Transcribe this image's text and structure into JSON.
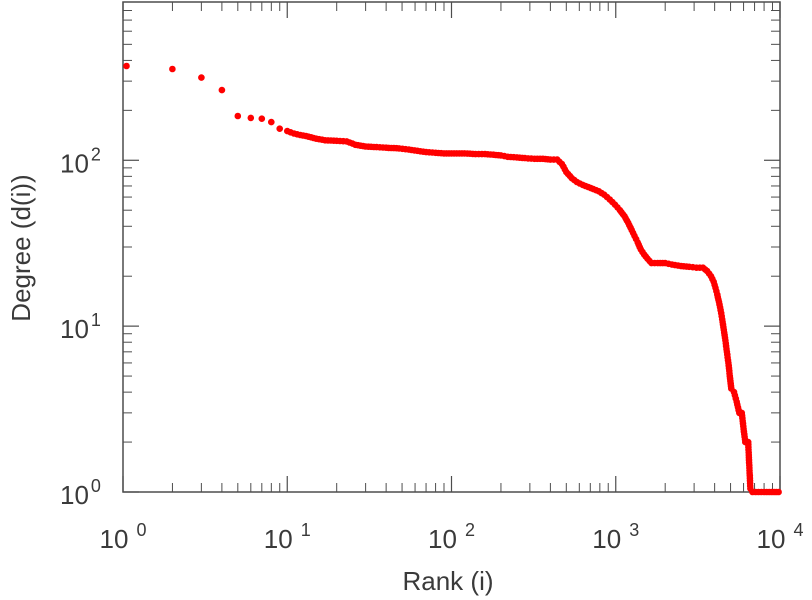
{
  "chart_data": {
    "type": "scatter",
    "title": "",
    "xlabel": "Rank (i)",
    "ylabel": "Degree (d(i))",
    "x_scale": "log",
    "y_scale": "log",
    "xlim": [
      1,
      10000
    ],
    "ylim": [
      1,
      900
    ],
    "grid": false,
    "marker_color": "#ff0000",
    "axis_color": "#4d4d4d",
    "x_ticks": [
      {
        "value": 1,
        "base": "10",
        "exp": "0"
      },
      {
        "value": 10,
        "base": "10",
        "exp": "1"
      },
      {
        "value": 100,
        "base": "10",
        "exp": "2"
      },
      {
        "value": 1000,
        "base": "10",
        "exp": "3"
      },
      {
        "value": 10000,
        "base": "10",
        "exp": "4"
      }
    ],
    "y_ticks": [
      {
        "value": 1,
        "base": "10",
        "exp": "0"
      },
      {
        "value": 10,
        "base": "10",
        "exp": "1"
      },
      {
        "value": 100,
        "base": "10",
        "exp": "2"
      }
    ],
    "series": [
      {
        "points": [
          [
            1.05,
            370
          ],
          [
            2,
            355
          ],
          [
            3,
            315
          ],
          [
            4,
            265
          ],
          [
            5,
            185
          ],
          [
            6,
            180
          ],
          [
            7,
            178
          ],
          [
            8,
            170
          ],
          [
            9,
            155
          ],
          [
            10,
            150
          ],
          [
            11,
            145
          ],
          [
            12,
            142
          ],
          [
            13,
            140
          ],
          [
            15,
            135
          ],
          [
            17,
            132
          ],
          [
            20,
            131
          ],
          [
            23,
            130
          ],
          [
            26,
            124
          ],
          [
            30,
            121
          ],
          [
            35,
            120
          ],
          [
            40,
            119
          ],
          [
            48,
            118
          ],
          [
            55,
            116
          ],
          [
            62,
            114
          ],
          [
            70,
            112
          ],
          [
            80,
            111
          ],
          [
            90,
            110
          ],
          [
            100,
            110
          ],
          [
            120,
            110
          ],
          [
            140,
            109
          ],
          [
            160,
            109
          ],
          [
            180,
            108
          ],
          [
            200,
            107
          ],
          [
            220,
            105
          ],
          [
            250,
            104
          ],
          [
            280,
            103
          ],
          [
            320,
            102
          ],
          [
            360,
            102
          ],
          [
            400,
            101
          ],
          [
            440,
            101
          ],
          [
            470,
            95
          ],
          [
            500,
            85
          ],
          [
            540,
            78
          ],
          [
            580,
            74
          ],
          [
            630,
            71
          ],
          [
            680,
            69
          ],
          [
            730,
            67
          ],
          [
            790,
            65
          ],
          [
            850,
            62
          ],
          [
            920,
            58
          ],
          [
            990,
            54
          ],
          [
            1060,
            50
          ],
          [
            1130,
            46
          ],
          [
            1190,
            42
          ],
          [
            1250,
            38
          ],
          [
            1300,
            35
          ],
          [
            1360,
            32
          ],
          [
            1420,
            29
          ],
          [
            1490,
            27
          ],
          [
            1560,
            25.5
          ],
          [
            1650,
            24
          ],
          [
            1800,
            24
          ],
          [
            2000,
            24
          ],
          [
            2200,
            23.5
          ],
          [
            2500,
            23
          ],
          [
            2800,
            22.8
          ],
          [
            3100,
            22.5
          ],
          [
            3400,
            22.5
          ],
          [
            3600,
            21.5
          ],
          [
            3800,
            20
          ],
          [
            3950,
            18.5
          ],
          [
            4050,
            17
          ],
          [
            4150,
            15.5
          ],
          [
            4250,
            14
          ],
          [
            4350,
            12.5
          ],
          [
            4450,
            11
          ],
          [
            4550,
            9.5
          ],
          [
            4650,
            8.2
          ],
          [
            4750,
            7
          ],
          [
            4850,
            6
          ],
          [
            4950,
            5
          ],
          [
            5050,
            4.2
          ],
          [
            5250,
            4
          ],
          [
            5450,
            3.5
          ],
          [
            5650,
            3
          ],
          [
            5850,
            3
          ],
          [
            6000,
            2.4
          ],
          [
            6150,
            2
          ],
          [
            6400,
            2
          ],
          [
            6600,
            1.05
          ],
          [
            6800,
            1
          ],
          [
            7100,
            1
          ],
          [
            7400,
            1
          ],
          [
            7700,
            1
          ],
          [
            8000,
            1
          ],
          [
            8300,
            1
          ],
          [
            8600,
            1
          ],
          [
            8900,
            1
          ],
          [
            9200,
            1
          ],
          [
            9500,
            1
          ],
          [
            9800,
            1
          ]
        ]
      }
    ]
  }
}
